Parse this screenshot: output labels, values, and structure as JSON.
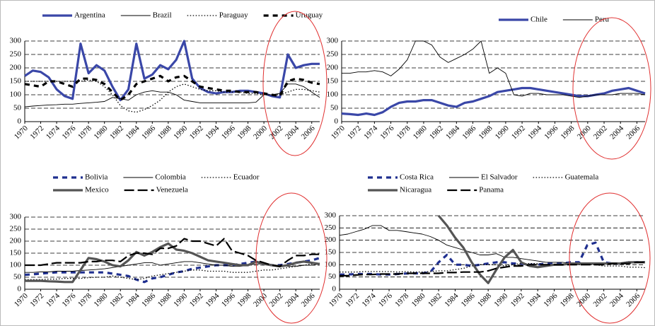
{
  "chart_data": [
    {
      "type": "line",
      "x": [
        1970,
        1971,
        1972,
        1973,
        1974,
        1975,
        1976,
        1977,
        1978,
        1979,
        1980,
        1981,
        1982,
        1983,
        1984,
        1985,
        1986,
        1987,
        1988,
        1989,
        1990,
        1991,
        1992,
        1993,
        1994,
        1995,
        1996,
        1997,
        1998,
        1999,
        2000,
        2001,
        2002,
        2003,
        2004,
        2005,
        2006,
        2007
      ],
      "xlim": [
        1970,
        2007
      ],
      "xticks": [
        1970,
        1972,
        1974,
        1976,
        1978,
        1980,
        1982,
        1984,
        1986,
        1988,
        1990,
        1992,
        1994,
        1996,
        1998,
        2000,
        2002,
        2004,
        2006
      ],
      "ylim": [
        0,
        300
      ],
      "yticks": [
        0,
        50,
        100,
        150,
        200,
        250,
        300
      ],
      "grid": true,
      "series": [
        {
          "name": "Argentina",
          "color": "#3a47a8",
          "line_style": "thick",
          "values": [
            170,
            190,
            185,
            165,
            120,
            95,
            85,
            290,
            180,
            210,
            190,
            130,
            80,
            120,
            290,
            160,
            175,
            210,
            195,
            230,
            300,
            160,
            125,
            110,
            105,
            110,
            110,
            115,
            115,
            110,
            105,
            95,
            90,
            250,
            200,
            210,
            215,
            215
          ]
        },
        {
          "name": "Brazil",
          "color": "#000000",
          "line_style": "thin",
          "values": [
            55,
            58,
            60,
            62,
            63,
            65,
            65,
            68,
            70,
            72,
            75,
            90,
            85,
            80,
            100,
            110,
            115,
            110,
            110,
            100,
            80,
            75,
            70,
            70,
            70,
            70,
            70,
            70,
            70,
            72,
            100,
            100,
            105,
            140,
            140,
            130,
            110,
            90
          ]
        },
        {
          "name": "Paraguay",
          "color": "#000000",
          "line_style": "dotted",
          "values": [
            150,
            150,
            150,
            150,
            150,
            150,
            150,
            150,
            155,
            150,
            130,
            100,
            60,
            40,
            35,
            45,
            60,
            80,
            110,
            130,
            140,
            130,
            120,
            115,
            115,
            110,
            110,
            110,
            105,
            105,
            100,
            100,
            100,
            110,
            120,
            120,
            115,
            110
          ]
        },
        {
          "name": "Uruguay",
          "color": "#000000",
          "line_style": "dashed",
          "values": [
            140,
            135,
            130,
            150,
            150,
            140,
            130,
            160,
            160,
            155,
            140,
            110,
            80,
            100,
            140,
            150,
            160,
            170,
            150,
            165,
            170,
            150,
            130,
            125,
            120,
            115,
            115,
            110,
            110,
            110,
            105,
            100,
            95,
            150,
            160,
            155,
            145,
            140
          ]
        }
      ]
    },
    {
      "type": "line",
      "x": [
        1970,
        1971,
        1972,
        1973,
        1974,
        1975,
        1976,
        1977,
        1978,
        1979,
        1980,
        1981,
        1982,
        1983,
        1984,
        1985,
        1986,
        1987,
        1988,
        1989,
        1990,
        1991,
        1992,
        1993,
        1994,
        1995,
        1996,
        1997,
        1998,
        1999,
        2000,
        2001,
        2002,
        2003,
        2004,
        2005,
        2006,
        2007
      ],
      "xlim": [
        1970,
        2007
      ],
      "xticks": [
        1970,
        1972,
        1974,
        1976,
        1978,
        1980,
        1982,
        1984,
        1986,
        1988,
        1990,
        1992,
        1994,
        1996,
        1998,
        2000,
        2002,
        2004,
        2006
      ],
      "ylim": [
        0,
        300
      ],
      "yticks": [
        0,
        50,
        100,
        150,
        200,
        250,
        300
      ],
      "grid": true,
      "series": [
        {
          "name": "Chile",
          "color": "#3a47a8",
          "line_style": "thick",
          "values": [
            30,
            28,
            25,
            30,
            25,
            35,
            55,
            70,
            75,
            75,
            80,
            80,
            70,
            60,
            55,
            70,
            75,
            85,
            95,
            110,
            115,
            120,
            125,
            125,
            120,
            115,
            110,
            105,
            100,
            95,
            95,
            100,
            105,
            115,
            120,
            125,
            115,
            105
          ]
        },
        {
          "name": "Peru",
          "color": "#000000",
          "line_style": "thin",
          "values": [
            180,
            180,
            185,
            185,
            190,
            185,
            170,
            195,
            230,
            300,
            300,
            285,
            240,
            220,
            235,
            250,
            270,
            300,
            180,
            200,
            180,
            100,
            95,
            105,
            105,
            100,
            100,
            100,
            95,
            90,
            95,
            100,
            100,
            100,
            105,
            105,
            105,
            100
          ]
        }
      ]
    },
    {
      "type": "line",
      "x": [
        1970,
        1971,
        1972,
        1973,
        1974,
        1975,
        1976,
        1977,
        1978,
        1979,
        1980,
        1981,
        1982,
        1983,
        1984,
        1985,
        1986,
        1987,
        1988,
        1989,
        1990,
        1991,
        1992,
        1993,
        1994,
        1995,
        1996,
        1997,
        1998,
        1999,
        2000,
        2001,
        2002,
        2003,
        2004,
        2005,
        2006,
        2007
      ],
      "xlim": [
        1970,
        2007
      ],
      "xticks": [
        1970,
        1972,
        1974,
        1976,
        1978,
        1980,
        1982,
        1984,
        1986,
        1988,
        1990,
        1992,
        1994,
        1996,
        1998,
        2000,
        2002,
        2004,
        2006
      ],
      "ylim": [
        0,
        300
      ],
      "yticks": [
        0,
        50,
        100,
        150,
        200,
        250,
        300
      ],
      "grid": true,
      "series": [
        {
          "name": "Bolivia",
          "color": "#1f2f8f",
          "line_style": "dashed",
          "values": [
            60,
            62,
            65,
            68,
            70,
            70,
            70,
            70,
            70,
            70,
            70,
            65,
            60,
            55,
            40,
            30,
            45,
            50,
            60,
            70,
            75,
            85,
            90,
            95,
            100,
            100,
            100,
            105,
            110,
            115,
            105,
            100,
            100,
            105,
            110,
            115,
            120,
            130
          ]
        },
        {
          "name": "Colombia",
          "color": "#000000",
          "line_style": "thin",
          "values": [
            70,
            70,
            72,
            72,
            75,
            75,
            75,
            78,
            80,
            82,
            85,
            90,
            95,
            100,
            105,
            110,
            110,
            100,
            105,
            110,
            115,
            115,
            110,
            105,
            100,
            100,
            95,
            95,
            100,
            105,
            105,
            100,
            100,
            95,
            95,
            100,
            100,
            105
          ]
        },
        {
          "name": "Ecuador",
          "color": "#000000",
          "line_style": "dotted",
          "values": [
            40,
            40,
            40,
            42,
            42,
            45,
            45,
            45,
            48,
            50,
            50,
            55,
            50,
            45,
            40,
            45,
            55,
            60,
            65,
            70,
            75,
            80,
            80,
            75,
            75,
            75,
            70,
            70,
            70,
            75,
            80,
            80,
            85,
            90,
            95,
            100,
            105,
            110
          ]
        },
        {
          "name": "Mexico",
          "color": "#555555",
          "line_style": "thick",
          "values": [
            35,
            35,
            35,
            33,
            32,
            30,
            30,
            80,
            130,
            125,
            115,
            100,
            95,
            120,
            155,
            140,
            155,
            175,
            190,
            165,
            160,
            150,
            135,
            120,
            115,
            110,
            105,
            100,
            100,
            115,
            105,
            100,
            95,
            100,
            110,
            115,
            110,
            105
          ]
        },
        {
          "name": "Venezuela",
          "color": "#000000",
          "line_style": "longdash",
          "values": [
            100,
            100,
            100,
            105,
            110,
            110,
            110,
            110,
            115,
            115,
            120,
            120,
            115,
            140,
            150,
            150,
            145,
            170,
            170,
            180,
            210,
            200,
            200,
            190,
            180,
            210,
            160,
            150,
            140,
            120,
            110,
            100,
            95,
            120,
            140,
            140,
            145,
            145
          ]
        }
      ]
    },
    {
      "type": "line",
      "x": [
        1970,
        1971,
        1972,
        1973,
        1974,
        1975,
        1976,
        1977,
        1978,
        1979,
        1980,
        1981,
        1982,
        1983,
        1984,
        1985,
        1986,
        1987,
        1988,
        1989,
        1990,
        1991,
        1992,
        1993,
        1994,
        1995,
        1996,
        1997,
        1998,
        1999,
        2000,
        2001,
        2002,
        2003,
        2004,
        2005,
        2006,
        2007
      ],
      "xlim": [
        1970,
        2007
      ],
      "xticks": [
        1970,
        1972,
        1974,
        1976,
        1978,
        1980,
        1982,
        1984,
        1986,
        1988,
        1990,
        1992,
        1994,
        1996,
        1998,
        2000,
        2002,
        2004,
        2006
      ],
      "ylim": [
        0,
        300
      ],
      "yticks": [
        0,
        50,
        100,
        150,
        200,
        250,
        300
      ],
      "grid": true,
      "series": [
        {
          "name": "Costa Rica",
          "color": "#1f2f8f",
          "line_style": "dashed",
          "values": [
            60,
            60,
            62,
            62,
            62,
            60,
            60,
            62,
            64,
            65,
            65,
            70,
            110,
            140,
            100,
            100,
            95,
            100,
            105,
            110,
            110,
            105,
            105,
            100,
            100,
            105,
            105,
            105,
            110,
            110,
            180,
            190,
            110,
            105,
            105,
            110,
            110,
            110
          ]
        },
        {
          "name": "El Salvador",
          "color": "#000000",
          "line_style": "thin",
          "values": [
            220,
            225,
            235,
            245,
            260,
            260,
            240,
            240,
            235,
            230,
            225,
            215,
            200,
            180,
            170,
            160,
            150,
            140,
            140,
            145,
            130,
            130,
            125,
            120,
            115,
            110,
            110,
            110,
            105,
            105,
            105,
            105,
            105,
            105,
            105,
            105,
            110,
            110
          ]
        },
        {
          "name": "Guatemala",
          "color": "#000000",
          "line_style": "dotted",
          "values": [
            70,
            70,
            70,
            72,
            72,
            72,
            72,
            70,
            72,
            70,
            70,
            72,
            75,
            75,
            80,
            85,
            95,
            100,
            100,
            100,
            95,
            100,
            105,
            105,
            105,
            100,
            100,
            100,
            100,
            100,
            100,
            100,
            95,
            95,
            95,
            90,
            90,
            88
          ]
        },
        {
          "name": "Nicaragua",
          "color": "#555555",
          "line_style": "thick",
          "values": [
            null,
            null,
            null,
            null,
            null,
            null,
            null,
            null,
            null,
            null,
            null,
            null,
            300,
            260,
            210,
            170,
            110,
            60,
            25,
            80,
            130,
            160,
            110,
            95,
            90,
            95,
            100,
            100,
            105,
            105,
            105,
            105,
            105,
            105,
            105,
            110,
            110,
            110
          ]
        },
        {
          "name": "Panama",
          "color": "#000000",
          "line_style": "longdash",
          "values": [
            55,
            55,
            58,
            60,
            60,
            62,
            62,
            62,
            65,
            65,
            65,
            65,
            65,
            68,
            68,
            70,
            70,
            70,
            75,
            85,
            90,
            95,
            95,
            100,
            100,
            100,
            100,
            100,
            100,
            100,
            100,
            100,
            100,
            105,
            105,
            105,
            110,
            110
          ]
        }
      ]
    }
  ]
}
